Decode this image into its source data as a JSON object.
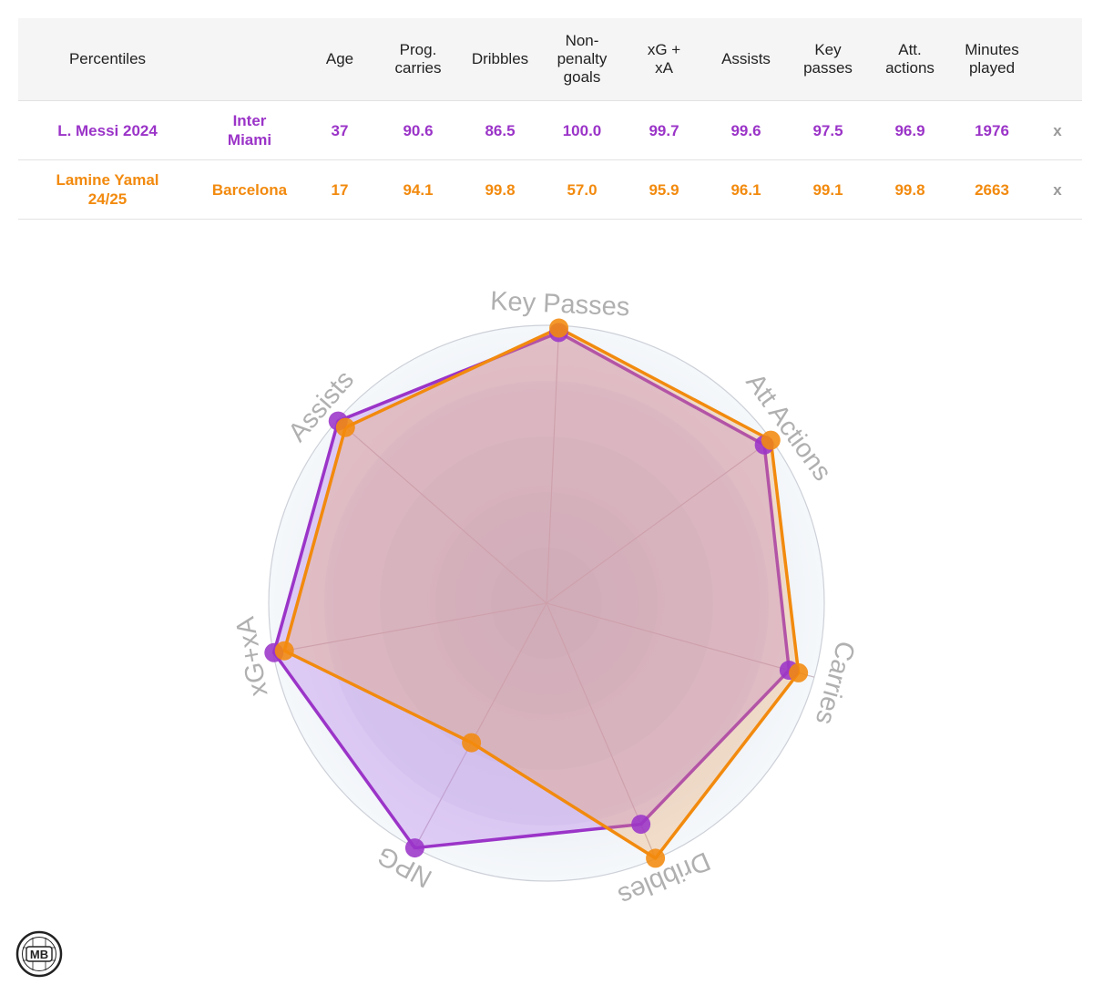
{
  "table": {
    "headers": [
      "Percentiles",
      "",
      "Age",
      "Prog.\ncarries",
      "Dribbles",
      "Non-\npenalty\ngoals",
      "xG +\nxA",
      "Assists",
      "Key\npasses",
      "Att.\nactions",
      "Minutes\nplayed",
      ""
    ],
    "rows": [
      {
        "player": "L. Messi 2024",
        "team": "Inter\nMiami",
        "values": [
          "37",
          "90.6",
          "86.5",
          "100.0",
          "99.7",
          "99.6",
          "97.5",
          "96.9",
          "1976"
        ],
        "remove": "x",
        "color": "#9b34c8"
      },
      {
        "player": "Lamine Yamal\n24/25",
        "team": "Barcelona",
        "values": [
          "17",
          "94.1",
          "99.8",
          "57.0",
          "95.9",
          "96.1",
          "99.1",
          "99.8",
          "2663"
        ],
        "remove": "x",
        "color": "#f28a0e"
      }
    ]
  },
  "chart_data": {
    "type": "radar",
    "axes": [
      "Key Passes",
      "Att Actions",
      "Carries",
      "Dribbles",
      "NPG",
      "xG+xA",
      "Assists"
    ],
    "range": [
      0,
      100
    ],
    "series": [
      {
        "name": "L. Messi 2024",
        "color": "#9b34c8",
        "values": [
          97.5,
          96.9,
          90.6,
          86.5,
          100.0,
          99.7,
          99.6
        ]
      },
      {
        "name": "Lamine Yamal 24/25",
        "color": "#f28a0e",
        "values": [
          99.1,
          99.8,
          94.1,
          99.8,
          57.0,
          95.9,
          96.1
        ]
      }
    ]
  },
  "logo": {
    "text": "MB"
  }
}
